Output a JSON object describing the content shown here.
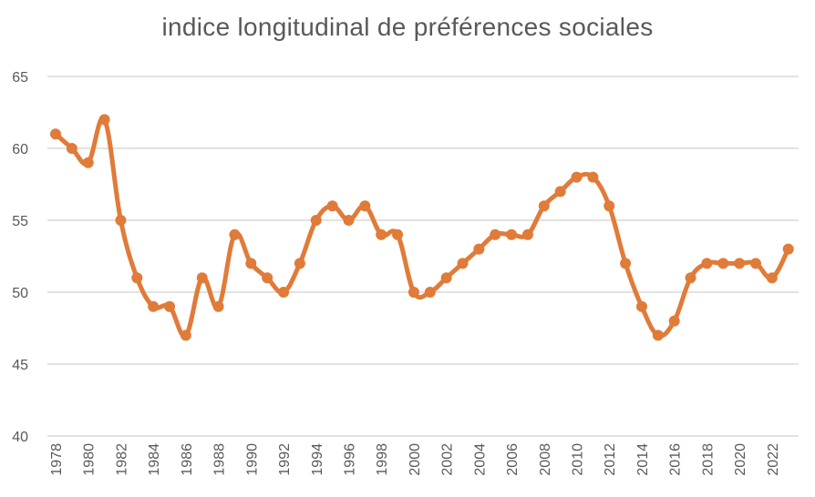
{
  "chart_data": {
    "type": "line",
    "title": "indice longitudinal de préférences sociales",
    "xlabel": "",
    "ylabel": "",
    "ylim": [
      40,
      65
    ],
    "yticks": [
      40,
      45,
      50,
      55,
      60,
      65
    ],
    "grid": true,
    "legend": "none",
    "x": [
      1978,
      1979,
      1980,
      1981,
      1982,
      1983,
      1984,
      1985,
      1986,
      1987,
      1988,
      1989,
      1990,
      1991,
      1992,
      1993,
      1994,
      1995,
      1996,
      1997,
      1998,
      1999,
      2000,
      2001,
      2002,
      2003,
      2004,
      2005,
      2006,
      2007,
      2008,
      2009,
      2010,
      2011,
      2012,
      2013,
      2014,
      2015,
      2016,
      2017,
      2018,
      2019,
      2020,
      2021,
      2022,
      2023
    ],
    "xtick_labels": [
      "1978",
      "1980",
      "1982",
      "1984",
      "1986",
      "1988",
      "1990",
      "1992",
      "1994",
      "1996",
      "1998",
      "2000",
      "2002",
      "2004",
      "2006",
      "2008",
      "2010",
      "2012",
      "2014",
      "2016",
      "2018",
      "2020",
      "2022"
    ],
    "series": [
      {
        "values": [
          61,
          60,
          59,
          62,
          55,
          51,
          49,
          49,
          47,
          51,
          49,
          54,
          52,
          51,
          50,
          52,
          55,
          56,
          55,
          56,
          54,
          54,
          50,
          50,
          51,
          52,
          53,
          54,
          54,
          54,
          56,
          57,
          58,
          58,
          56,
          52,
          49,
          47,
          48,
          51,
          52,
          52,
          52,
          52,
          51,
          53
        ],
        "color": "#E07B39"
      }
    ],
    "colors": {
      "line": "#E07B39",
      "grid": "#D9D9D9",
      "text": "#595959"
    }
  }
}
